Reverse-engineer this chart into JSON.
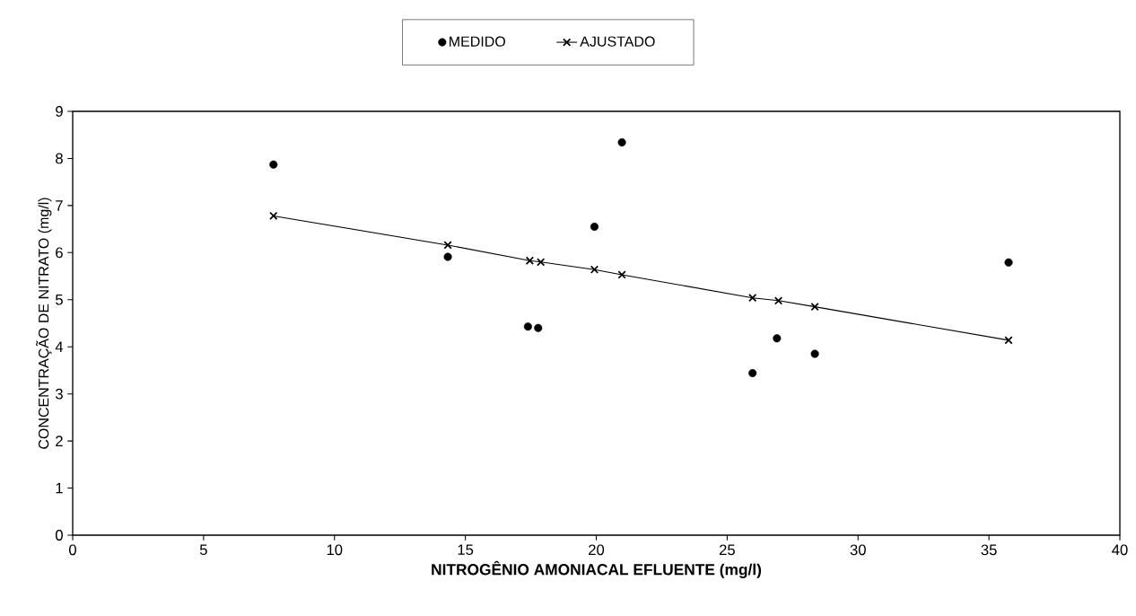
{
  "chart_data": {
    "type": "scatter",
    "xlabel": "NITROGÊNIO AMONIACAL EFLUENTE (mg/l)",
    "ylabel": "CONCENTRAÇÃO DE NITRATO (mg/l)",
    "xlim": [
      0,
      40
    ],
    "xticks": [
      0,
      5,
      10,
      15,
      20,
      25,
      30,
      35,
      40
    ],
    "ylim": [
      0,
      9
    ],
    "yticks": [
      0,
      1,
      2,
      3,
      4,
      5,
      6,
      7,
      8,
      9
    ],
    "legend": "top",
    "grid": false,
    "series": [
      {
        "name": "MEDIDO",
        "marker": "circle",
        "color": "#000000",
        "x": [
          7.67,
          14.33,
          17.39,
          17.78,
          19.93,
          20.98,
          25.97,
          26.9,
          28.35,
          35.75
        ],
        "values": [
          7.87,
          5.91,
          4.43,
          4.4,
          6.55,
          8.34,
          3.44,
          4.18,
          3.85,
          5.79
        ]
      },
      {
        "name": "AJUSTADO",
        "type": "line",
        "marker": "cross",
        "line_style": "solid",
        "color": "#000000",
        "x": [
          7.67,
          14.33,
          17.46,
          17.88,
          19.93,
          20.98,
          25.97,
          26.96,
          28.35,
          35.75
        ],
        "values": [
          6.78,
          6.16,
          5.83,
          5.8,
          5.64,
          5.53,
          5.04,
          4.98,
          4.85,
          4.14
        ]
      }
    ]
  }
}
